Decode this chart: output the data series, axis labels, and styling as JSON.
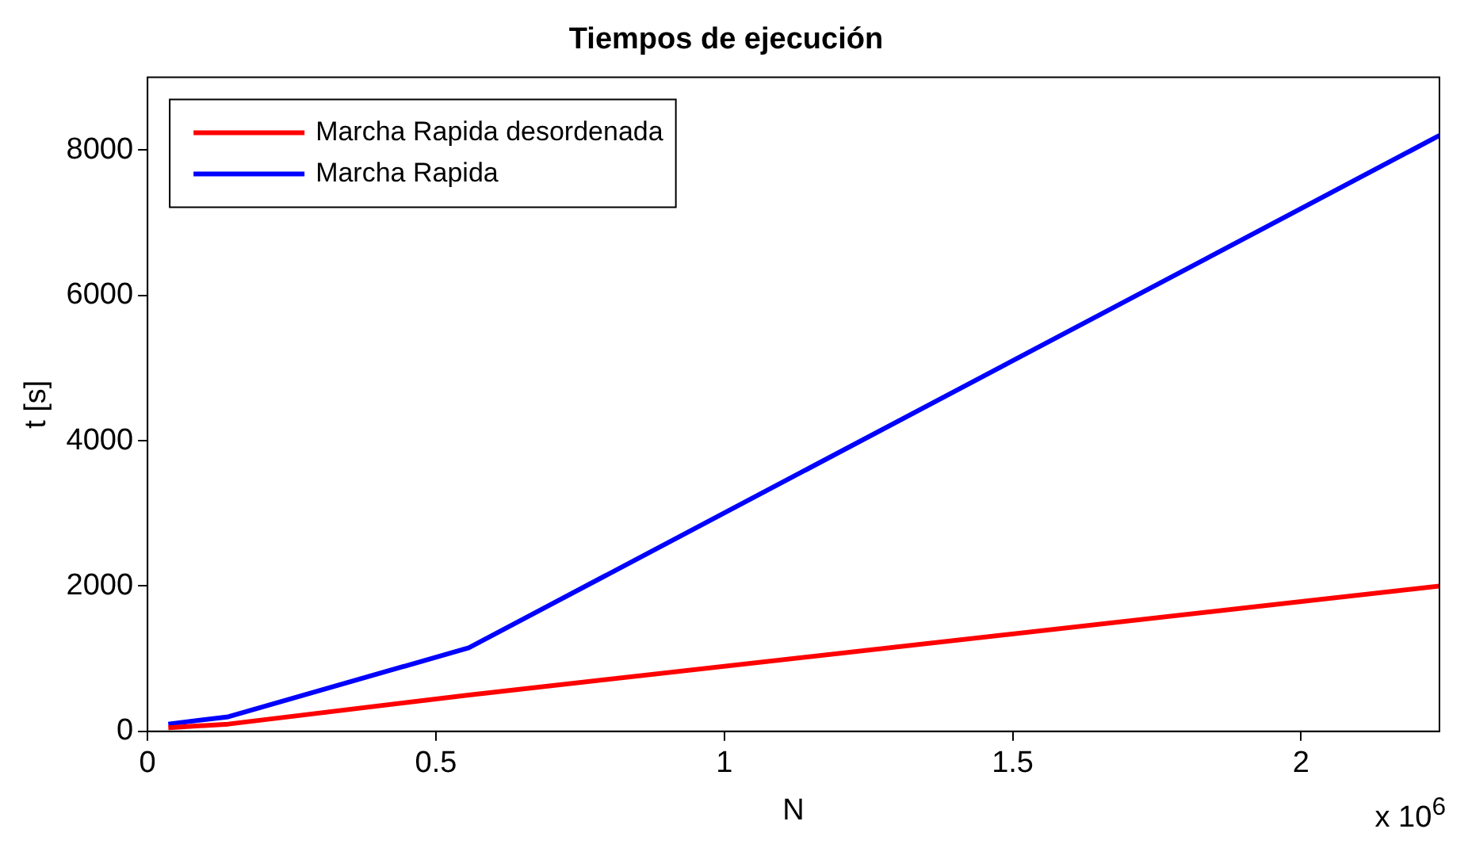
{
  "chart_data": {
    "type": "line",
    "title": "Tiempos de ejecución",
    "xlabel": "N",
    "ylabel": "t [s]",
    "annotations": [
      "x 10$^{6}$"
    ],
    "xlim": [
      0,
      2.24
    ],
    "ylim": [
      0,
      9000
    ],
    "xticks": [
      0,
      0.5,
      1,
      1.5,
      2
    ],
    "yticks": [
      0,
      2000,
      4000,
      6000,
      8000
    ],
    "grid": false,
    "legend": "top left",
    "line_style": "solid",
    "marker": "none",
    "series": [
      {
        "name": "Marcha Rapida desordenada",
        "color": "#ff0000",
        "x": [
          0.036,
          0.14,
          0.557,
          2.24
        ],
        "values": [
          50,
          100,
          500,
          2000
        ]
      },
      {
        "name": "Marcha Rapida",
        "color": "#0000ff",
        "x": [
          0.036,
          0.14,
          0.557,
          2.24
        ],
        "values": [
          100,
          200,
          1150,
          8200
        ]
      }
    ]
  }
}
